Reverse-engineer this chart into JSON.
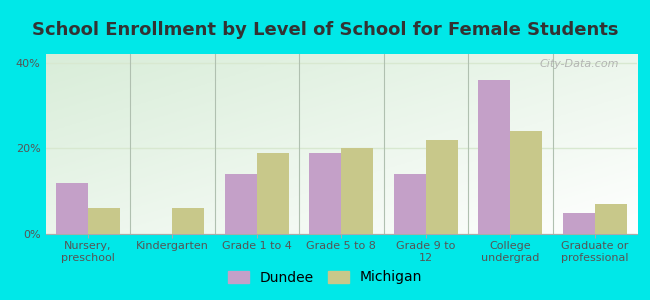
{
  "title": "School Enrollment by Level of School for Female Students",
  "categories": [
    "Nursery,\npreschool",
    "Kindergarten",
    "Grade 1 to 4",
    "Grade 5 to 8",
    "Grade 9 to\n12",
    "College\nundergrad",
    "Graduate or\nprofessional"
  ],
  "dundee_values": [
    12,
    0,
    14,
    19,
    14,
    36,
    5
  ],
  "michigan_values": [
    6,
    6,
    19,
    20,
    22,
    24,
    7
  ],
  "dundee_color": "#c4a0c8",
  "michigan_color": "#c8c88a",
  "background_outer": "#00e8e8",
  "title_color": "#333333",
  "title_fontsize": 13,
  "axis_label_fontsize": 8,
  "legend_fontsize": 10,
  "ylim": [
    0,
    42
  ],
  "yticks": [
    0,
    20,
    40
  ],
  "ytick_labels": [
    "0%",
    "20%",
    "40%"
  ],
  "bar_width": 0.38,
  "watermark": "City-Data.com",
  "separator_color": "#b0c0b0",
  "grid_color": "#d8e8d0"
}
